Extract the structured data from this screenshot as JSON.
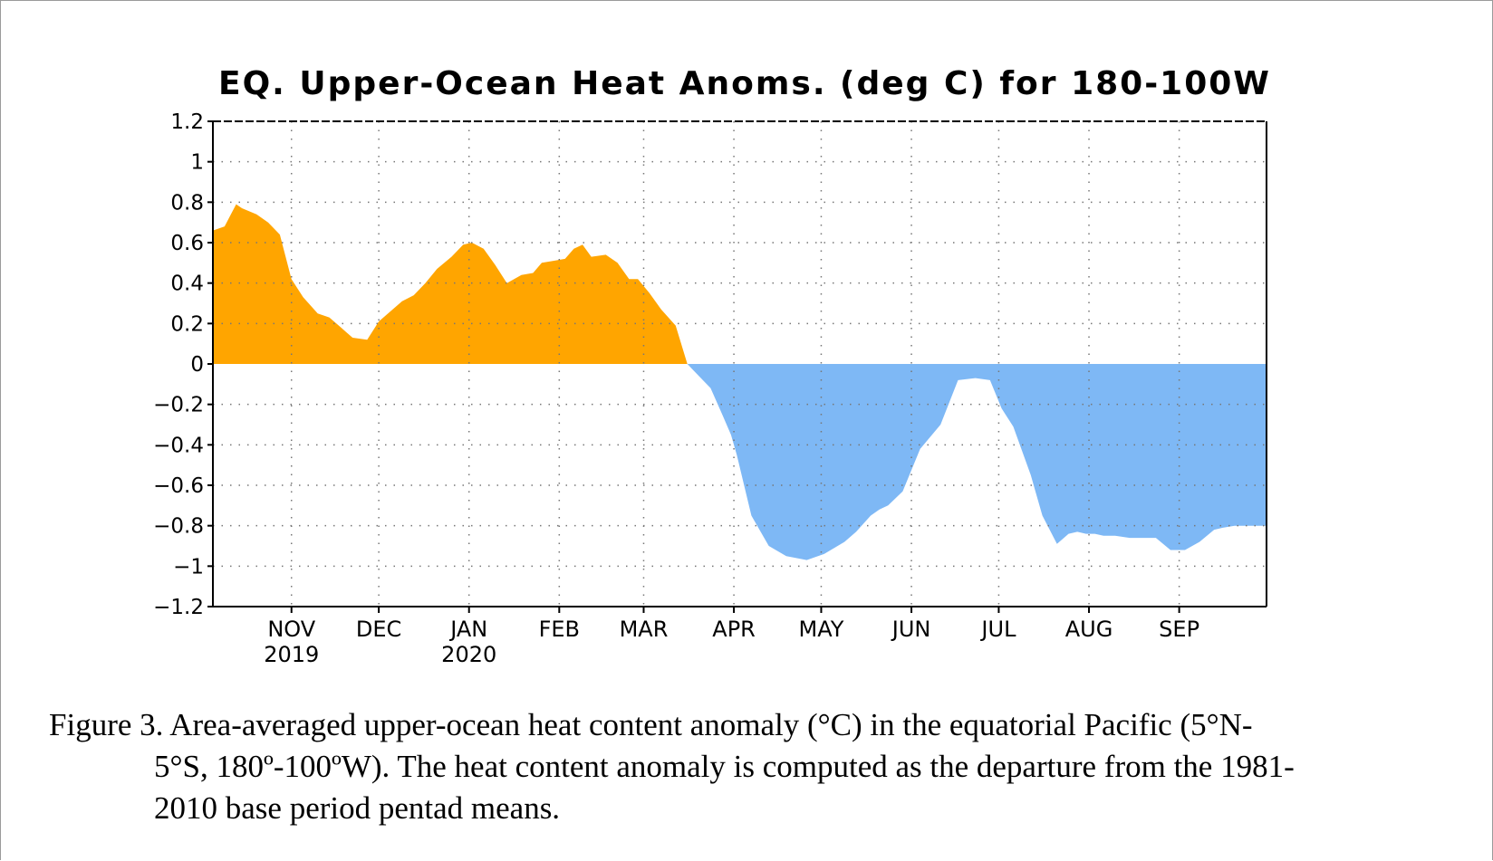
{
  "chart_data": {
    "type": "area",
    "title": "EQ. Upper-Ocean Heat Anoms. (deg C) for 180-100W",
    "ylim": [
      -1.2,
      1.2
    ],
    "yticks": [
      "1.2",
      "1",
      "0.8",
      "0.6",
      "0.4",
      "0.2",
      "0",
      "−0.2",
      "−0.4",
      "−0.6",
      "−0.8",
      "−1",
      "−1.2"
    ],
    "ytick_values": [
      1.2,
      1,
      0.8,
      0.6,
      0.4,
      0.2,
      0,
      -0.2,
      -0.4,
      -0.6,
      -0.8,
      -1,
      -1.2
    ],
    "months": [
      {
        "label": "NOV",
        "year": "2019"
      },
      {
        "label": "DEC",
        "year": ""
      },
      {
        "label": "JAN",
        "year": "2020"
      },
      {
        "label": "FEB",
        "year": ""
      },
      {
        "label": "MAR",
        "year": ""
      },
      {
        "label": "APR",
        "year": ""
      },
      {
        "label": "MAY",
        "year": ""
      },
      {
        "label": "JUN",
        "year": ""
      },
      {
        "label": "JUL",
        "year": ""
      },
      {
        "label": "AUG",
        "year": ""
      },
      {
        "label": "SEP",
        "year": ""
      }
    ],
    "month_start_days": [
      0,
      30,
      61,
      92,
      121,
      152,
      182,
      213,
      243,
      274,
      305
    ],
    "xlim_days": [
      -27,
      335
    ],
    "grid": true,
    "positive_color": "#ffa500",
    "negative_color": "#7eb8f5",
    "series": [
      {
        "x_days": [
          -27,
          -23,
          -19,
          -17,
          -12,
          -8,
          -4,
          0,
          4,
          9,
          13,
          17,
          21,
          26,
          30,
          34,
          38,
          42,
          46,
          50,
          55,
          59,
          62,
          66,
          70,
          74,
          79,
          83,
          86,
          90,
          94,
          97,
          100,
          103,
          108,
          112,
          116,
          119,
          123,
          127,
          132,
          136,
          140,
          144,
          148,
          151,
          153,
          158,
          164,
          170,
          177,
          183,
          190,
          194,
          199,
          202,
          205,
          210,
          216,
          223,
          229,
          235,
          240,
          244,
          248,
          254,
          258,
          263,
          267,
          270,
          273,
          276,
          279,
          283,
          288,
          292,
          297,
          302,
          307,
          312,
          317,
          320,
          324,
          328,
          331,
          335
        ],
        "values": [
          0.66,
          0.68,
          0.79,
          0.77,
          0.74,
          0.7,
          0.64,
          0.42,
          0.33,
          0.25,
          0.23,
          0.18,
          0.13,
          0.12,
          0.21,
          0.26,
          0.31,
          0.34,
          0.4,
          0.47,
          0.53,
          0.59,
          0.6,
          0.57,
          0.49,
          0.4,
          0.44,
          0.45,
          0.5,
          0.51,
          0.52,
          0.57,
          0.59,
          0.53,
          0.54,
          0.5,
          0.42,
          0.42,
          0.35,
          0.27,
          0.19,
          0.0,
          -0.06,
          -0.12,
          -0.25,
          -0.35,
          -0.45,
          -0.75,
          -0.9,
          -0.95,
          -0.97,
          -0.94,
          -0.88,
          -0.83,
          -0.75,
          -0.72,
          -0.7,
          -0.63,
          -0.42,
          -0.3,
          -0.08,
          -0.07,
          -0.08,
          -0.22,
          -0.31,
          -0.55,
          -0.75,
          -0.89,
          -0.84,
          -0.83,
          -0.84,
          -0.84,
          -0.85,
          -0.85,
          -0.86,
          -0.86,
          -0.86,
          -0.92,
          -0.92,
          -0.88,
          -0.82,
          -0.81,
          -0.8,
          -0.8,
          -0.8,
          -0.8
        ]
      }
    ]
  },
  "caption": {
    "line1": "Figure 3. Area-averaged upper-ocean heat content anomaly (°C) in the equatorial Pacific (5°N-",
    "line2": "5°S, 180º-100ºW). The heat content anomaly is computed as the departure from the 1981-",
    "line3": "2010 base period pentad means."
  }
}
